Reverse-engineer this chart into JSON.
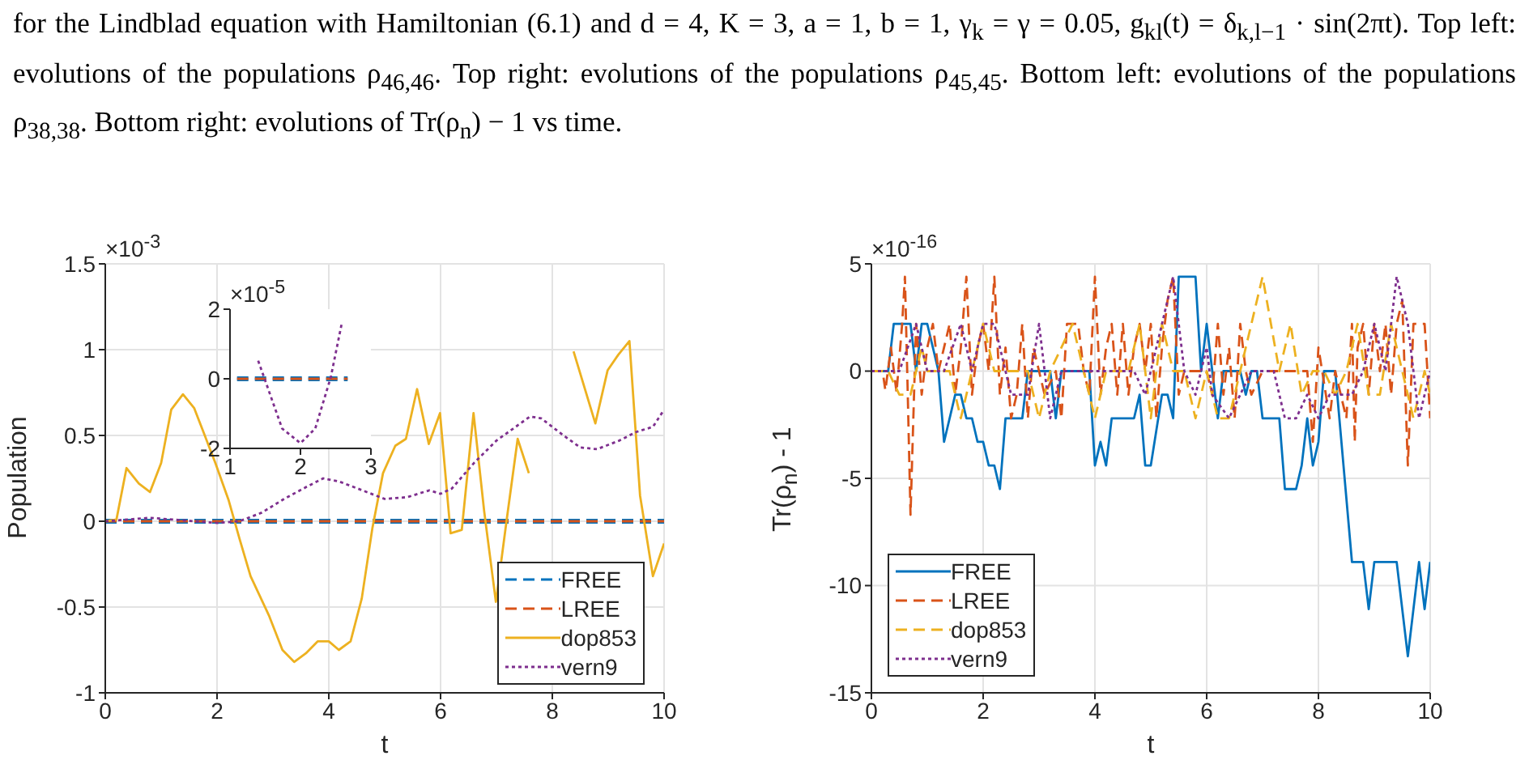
{
  "chart_data": [
    {
      "type": "other",
      "annotations": [
        "for the Lindblad equation with Hamiltonian (6.1) and d = 4, K = 3, a = 1, b = 1, γ$_{k}$ = γ = 0.05, g$_{kl}$(t) = δ$_{k,l−1}$ · sin(2πt). Top left: evolutions of the populations ρ$_{46,46}$. Top right: evolutions of the populations ρ$_{45,45}$. Bottom left: evolutions of the populations ρ$_{38,38}$. Bottom right: evolutions of Tr(ρ$_{n}$) − 1 vs time."
      ]
    },
    {
      "type": "line",
      "xlabel": "t",
      "ylabel": "Population",
      "annotations": [
        "×10$^{-3}$"
      ],
      "xlim": [
        0,
        10
      ],
      "xticks": [
        0,
        2,
        4,
        6,
        8,
        10
      ],
      "ylim": [
        -1,
        1.5
      ],
      "yticks": [
        -1,
        -0.5,
        0,
        0.5,
        1,
        1.5
      ],
      "grid": true,
      "legend": "bottom right",
      "series": [
        {
          "name": "FREE",
          "color": "#0072bd",
          "line_style": "dashed",
          "x": [
            0,
            10
          ],
          "values": [
            0,
            0
          ]
        },
        {
          "name": "LREE",
          "color": "#d95319",
          "line_style": "dashed",
          "x": [
            0,
            10
          ],
          "values": [
            0,
            0
          ]
        },
        {
          "name": "dop853",
          "color": "#edb120",
          "line_style": "solid",
          "x": [
            0,
            0.2,
            0.38,
            0.6,
            0.8,
            1.0,
            1.18,
            1.39,
            1.59,
            1.97,
            2.21,
            2.4,
            2.6,
            2.93,
            3.17,
            3.38,
            3.59,
            3.8,
            4.0,
            4.18,
            4.39,
            4.59,
            4.78,
            4.97,
            5.19,
            5.38,
            5.58,
            5.79,
            5.99,
            6.18,
            6.38,
            6.59,
            6.78,
            6.99,
            7.18,
            7.38,
            7.58,
            7.78,
            7.98,
            8.38,
            8.77,
            8.99,
            9.18,
            9.38,
            9.57,
            9.8,
            10
          ],
          "values": [
            0,
            0.01,
            0.31,
            0.22,
            0.17,
            0.34,
            0.65,
            0.74,
            0.66,
            0.34,
            0.12,
            -0.1,
            -0.32,
            -0.55,
            -0.75,
            -0.82,
            -0.77,
            -0.7,
            -0.7,
            -0.75,
            -0.7,
            -0.45,
            -0.04,
            0.28,
            0.44,
            0.48,
            0.77,
            0.45,
            0.63,
            -0.07,
            -0.05,
            0.63,
            0.06,
            -0.47,
            0,
            0.48,
            0.28,
            null,
            null,
            0.99,
            0.57,
            0.88,
            0.97,
            1.05,
            0.15,
            -0.32,
            -0.13
          ]
        },
        {
          "name": "vern9",
          "color": "#7e2f8e",
          "line_style": "dotted",
          "x": [
            0,
            0.4,
            0.8,
            1.2,
            1.6,
            2,
            2.4,
            2.8,
            3.2,
            3.6,
            3.9,
            4.2,
            4.6,
            5.0,
            5.4,
            5.8,
            6.0,
            6.2,
            6.6,
            7.0,
            7.3,
            7.6,
            7.8,
            8.2,
            8.5,
            8.8,
            9.2,
            9.5,
            9.8,
            10
          ],
          "values": [
            0,
            0.01,
            0.02,
            0.01,
            0,
            -0.01,
            0,
            0.05,
            0.13,
            0.2,
            0.25,
            0.23,
            0.18,
            0.13,
            0.14,
            0.18,
            0.16,
            0.19,
            0.34,
            0.47,
            0.54,
            0.61,
            0.6,
            0.5,
            0.43,
            0.42,
            0.47,
            0.52,
            0.55,
            0.65
          ]
        }
      ]
    },
    {
      "type": "line",
      "annotations": [
        "×10$^{-5}$"
      ],
      "xlim": [
        1,
        3
      ],
      "xticks": [
        1,
        2,
        3
      ],
      "ylim": [
        -2,
        2
      ],
      "yticks": [
        -2,
        0,
        2
      ],
      "series": [
        {
          "color": "#0072bd",
          "line_style": "dashed",
          "x": [
            1.1,
            2.67
          ],
          "values": [
            0,
            0
          ]
        },
        {
          "color": "#d95319",
          "line_style": "dashed",
          "x": [
            1.1,
            2.67
          ],
          "values": [
            0,
            0
          ]
        },
        {
          "color": "#7e2f8e",
          "line_style": "dotted",
          "x": [
            1.4,
            1.74,
            2.0,
            2.21,
            2.43,
            2.59
          ],
          "values": [
            0.52,
            -1.43,
            -1.85,
            -1.43,
            0.04,
            1.63
          ]
        }
      ]
    },
    {
      "type": "line",
      "xlabel": "t",
      "ylabel": "Tr(ρ$_{n}$) - 1",
      "annotations": [
        "×10$^{-16}$"
      ],
      "xlim": [
        0,
        10
      ],
      "xticks": [
        0,
        2,
        4,
        6,
        8,
        10
      ],
      "ylim": [
        -15,
        5
      ],
      "yticks": [
        -15,
        -10,
        -5,
        0,
        5
      ],
      "grid": true,
      "legend": "bottom left",
      "series": [
        {
          "name": "FREE",
          "color": "#0072bd",
          "line_style": "solid",
          "x": [
            0,
            0.3,
            0.4,
            0.7,
            0.8,
            0.9,
            1.0,
            1.2,
            1.3,
            1.5,
            1.6,
            1.7,
            1.8,
            1.9,
            2.0,
            2.1,
            2.2,
            2.3,
            2.4,
            2.7,
            2.8,
            3.2,
            3.3,
            3.4,
            3.9,
            4.0,
            4.1,
            4.2,
            4.3,
            4.7,
            4.8,
            4.9,
            5.0,
            5.2,
            5.3,
            5.4,
            5.5,
            5.8,
            5.9,
            6.0,
            6.2,
            6.3,
            6.6,
            6.7,
            6.8,
            6.9,
            7.0,
            7.3,
            7.4,
            7.6,
            7.7,
            7.8,
            7.9,
            8.0,
            8.1,
            8.3,
            8.6,
            8.8,
            8.9,
            9.0,
            9.4,
            9.6,
            9.8,
            9.9,
            10
          ],
          "values": [
            0,
            0,
            2.2,
            2.2,
            0,
            2.2,
            2.2,
            0,
            -3.3,
            -1.1,
            -1.1,
            -2.2,
            -2.2,
            -3.3,
            -3.3,
            -4.4,
            -4.4,
            -5.5,
            -2.2,
            -2.2,
            0,
            0,
            -2.2,
            0,
            0,
            -4.4,
            -3.3,
            -4.4,
            -2.2,
            -2.2,
            -1.1,
            -4.4,
            -4.4,
            -1.1,
            -1.1,
            -2.2,
            4.4,
            4.4,
            0,
            2.2,
            -2.2,
            0,
            0,
            -1.1,
            0,
            0,
            -2.2,
            -2.2,
            -5.5,
            -5.5,
            -4.4,
            -2.2,
            -4.4,
            -3.3,
            0,
            0,
            -8.9,
            -8.9,
            -11.1,
            -8.9,
            -8.9,
            -13.3,
            -8.9,
            -11.1,
            -8.9
          ]
        },
        {
          "name": "LREE",
          "color": "#d95319",
          "line_style": "dashed",
          "x": [
            0,
            0.2,
            0.25,
            0.35,
            0.45,
            0.55,
            0.6,
            0.65,
            0.7,
            0.8,
            0.9,
            1.0,
            1.1,
            1.2,
            1.3,
            1.4,
            1.5,
            1.6,
            1.7,
            1.8,
            1.9,
            2.0,
            2.1,
            2.2,
            2.3,
            2.4,
            2.5,
            2.6,
            2.7,
            2.8,
            2.9,
            3.0,
            3.1,
            3.3,
            3.4,
            3.5,
            3.7,
            3.8,
            3.9,
            4.0,
            4.1,
            4.2,
            4.3,
            4.4,
            4.5,
            4.6,
            4.7,
            4.8,
            4.9,
            5.0,
            5.1,
            5.2,
            5.3,
            5.4,
            5.5,
            5.6,
            6.0,
            6.1,
            6.2,
            6.3,
            6.4,
            6.5,
            6.6,
            6.7,
            6.8,
            7.0,
            7.8,
            7.9,
            8.0,
            8.2,
            8.3,
            8.5,
            8.6,
            8.65,
            8.7,
            8.8,
            8.9,
            9.0,
            9.1,
            9.2,
            9.3,
            9.4,
            9.5,
            9.6,
            9.7,
            9.9,
            10
          ],
          "values": [
            0,
            0,
            -0.9,
            1.1,
            -1,
            2.2,
            4.4,
            -1,
            -6.7,
            2.2,
            -1.1,
            1.1,
            2.2,
            0,
            1.1,
            2.2,
            -1.1,
            1.1,
            4.4,
            -1.1,
            1.1,
            2.2,
            0,
            4.4,
            -1.1,
            1.1,
            -2.2,
            -1.1,
            2.2,
            -2.2,
            1.1,
            0,
            -1.1,
            0,
            -2.2,
            2.2,
            2.2,
            0,
            -1.1,
            4.4,
            -1.1,
            1.1,
            2.2,
            -1.1,
            2.2,
            -1.1,
            1.1,
            2.2,
            0,
            2.2,
            -2.2,
            1.1,
            3.3,
            4.4,
            -1.1,
            0,
            0,
            -1.1,
            2.2,
            -1.1,
            1.1,
            -2.2,
            2.2,
            0,
            -1.1,
            0,
            0,
            -3.3,
            1.1,
            -2.2,
            0,
            -2.2,
            2.2,
            -3.3,
            1.1,
            2.2,
            -1.1,
            2.2,
            0,
            2.2,
            -1.1,
            2.2,
            3.3,
            -4.4,
            2.2,
            2.2,
            -2.2
          ]
        },
        {
          "name": "dop853",
          "color": "#edb120",
          "line_style": "dashed",
          "x": [
            0,
            0.3,
            0.5,
            0.7,
            0.9,
            1.0,
            1.4,
            1.6,
            1.8,
            2.0,
            2.2,
            2.8,
            3.0,
            3.2,
            3.6,
            3.8,
            4.0,
            4.2,
            4.6,
            4.8,
            5.0,
            5.2,
            5.4,
            5.6,
            5.8,
            6.0,
            6.2,
            6.4,
            6.6,
            7.0,
            7.3,
            7.5,
            7.7,
            7.9,
            8.1,
            8.3,
            8.5,
            8.7,
            8.9,
            9.1,
            9.3,
            9.5,
            9.7,
            9.9,
            10
          ],
          "values": [
            0,
            0,
            -1.1,
            -1.1,
            1.1,
            0,
            0,
            -2.2,
            0,
            2.2,
            0,
            0,
            -2.2,
            0,
            2.2,
            0,
            -2.2,
            0,
            0,
            2.2,
            -2.2,
            2.2,
            0,
            0,
            -2.2,
            0,
            -2.2,
            -2.2,
            0,
            4.4,
            0,
            2.2,
            -1.1,
            0,
            0,
            -1.1,
            0,
            2.2,
            -1.1,
            -1.1,
            2.2,
            0,
            -2.2,
            0,
            -1.1
          ]
        },
        {
          "name": "vern9",
          "color": "#7e2f8e",
          "line_style": "dotted",
          "x": [
            0,
            0.5,
            0.8,
            1.0,
            1.3,
            1.6,
            1.8,
            2.0,
            2.2,
            2.5,
            2.8,
            3.0,
            3.2,
            3.4,
            4.7,
            4.9,
            5.1,
            5.4,
            5.6,
            5.8,
            6.0,
            6.1,
            6.4,
            6.6,
            6.8,
            7.2,
            7.4,
            7.6,
            7.8,
            8.0,
            8.2,
            8.6,
            8.8,
            9.0,
            9.2,
            9.4,
            9.6,
            9.8,
            10
          ],
          "values": [
            0,
            0,
            2.2,
            0,
            0,
            2.2,
            0,
            2.2,
            2.2,
            -1.1,
            -1.1,
            2.2,
            -2.2,
            0,
            0,
            -1.1,
            1.1,
            4.4,
            0,
            -1.1,
            1.1,
            -1.1,
            -2.2,
            -1.1,
            0,
            0,
            -2.2,
            -2.2,
            -1.1,
            -2.2,
            -1.1,
            -1.1,
            0,
            2.2,
            0,
            4.4,
            2.2,
            -2.2,
            0
          ]
        }
      ]
    }
  ]
}
